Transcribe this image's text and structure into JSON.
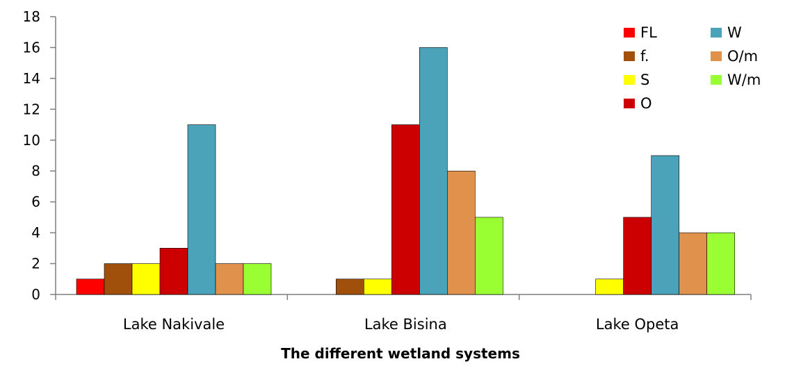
{
  "chart_data": {
    "type": "bar",
    "categories": [
      "Lake Nakivale",
      "Lake Bisina",
      "Lake Opeta"
    ],
    "series": [
      {
        "name": "FL",
        "color": "#ff0000",
        "values": [
          1,
          0,
          0
        ]
      },
      {
        "name": "f.",
        "color": "#a0500a",
        "values": [
          2,
          1,
          0
        ]
      },
      {
        "name": "S",
        "color": "#ffff00",
        "values": [
          2,
          1,
          1
        ]
      },
      {
        "name": "O",
        "color": "#cc0000",
        "values": [
          3,
          11,
          5
        ]
      },
      {
        "name": "W",
        "color": "#4ba3ba",
        "values": [
          11,
          16,
          9
        ]
      },
      {
        "name": "O/m",
        "color": "#e0924d",
        "values": [
          2,
          8,
          4
        ]
      },
      {
        "name": "W/m",
        "color": "#99ff33",
        "values": [
          2,
          5,
          4
        ]
      }
    ],
    "title": "",
    "xlabel": "The different wetland systems",
    "ylabel": "",
    "ylim": [
      0,
      18
    ],
    "yticks": [
      0,
      2,
      4,
      6,
      8,
      10,
      12,
      14,
      16,
      18
    ],
    "grid": false,
    "legend_position": "top-right"
  }
}
